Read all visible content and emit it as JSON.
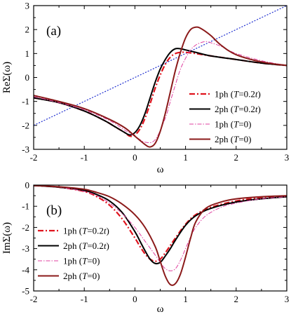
{
  "chart_data": [
    {
      "type": "line",
      "panel_label": "(a)",
      "xlabel": "ω",
      "ylabel": "ReΣ(ω)",
      "xlim": [
        -2,
        3
      ],
      "ylim": [
        -3,
        3
      ],
      "xticks": [
        "-2",
        "-1",
        "0",
        "1",
        "2",
        "3"
      ],
      "yticks": [
        "-3",
        "-2",
        "-1",
        "0",
        "1",
        "2",
        "3"
      ],
      "grid": false,
      "legend_position": "right",
      "reference_line": {
        "style": "dotted",
        "color": "#1f2fd0",
        "x": [
          -2,
          3
        ],
        "y": [
          -2,
          3
        ]
      },
      "series": [
        {
          "name": "1ph (T=0.2t)",
          "name_parts": [
            "1ph (",
            "T",
            "=0.2",
            "t",
            ")"
          ],
          "style": "dash-dot",
          "color": "#e0141e",
          "x": [
            -2,
            -1.5,
            -1,
            -0.6,
            -0.4,
            -0.2,
            -0.1,
            0,
            0.1,
            0.2,
            0.3,
            0.4,
            0.5,
            0.6,
            0.7,
            0.8,
            0.9,
            1.0,
            1.2,
            1.5,
            2,
            2.5,
            3
          ],
          "y": [
            -0.85,
            -1.05,
            -1.4,
            -1.8,
            -2.05,
            -2.3,
            -2.45,
            -2.4,
            -2.15,
            -1.7,
            -1.1,
            -0.45,
            0.1,
            0.55,
            0.85,
            1.0,
            1.05,
            1.05,
            1.0,
            0.9,
            0.75,
            0.6,
            0.5
          ]
        },
        {
          "name": "2ph (T=0.2t)",
          "name_parts": [
            "2ph (",
            "T",
            "=0.2",
            "t",
            ")"
          ],
          "style": "solid",
          "color": "#000000",
          "x": [
            -2,
            -1.5,
            -1,
            -0.6,
            -0.4,
            -0.2,
            -0.1,
            0,
            0.1,
            0.2,
            0.3,
            0.4,
            0.5,
            0.6,
            0.7,
            0.8,
            0.9,
            1.0,
            1.2,
            1.5,
            2,
            2.5,
            3
          ],
          "y": [
            -0.85,
            -1.05,
            -1.4,
            -1.8,
            -2.05,
            -2.3,
            -2.4,
            -2.3,
            -2.0,
            -1.5,
            -0.85,
            -0.2,
            0.35,
            0.75,
            1.05,
            1.2,
            1.2,
            1.15,
            1.05,
            0.9,
            0.75,
            0.6,
            0.5
          ]
        },
        {
          "name": "1ph (T=0)",
          "name_parts": [
            "1ph (",
            "T",
            "=0)"
          ],
          "style": "thin-dash-dot",
          "color": "#e040a0",
          "x": [
            -2,
            -1.5,
            -1,
            -0.5,
            -0.2,
            0,
            0.2,
            0.4,
            0.6,
            0.7,
            0.8,
            0.9,
            1.0,
            1.1,
            1.2,
            1.3,
            1.4,
            1.5,
            1.7,
            2,
            2.5,
            3
          ],
          "y": [
            -0.8,
            -1.05,
            -1.35,
            -1.8,
            -2.2,
            -2.45,
            -2.7,
            -2.6,
            -1.7,
            -1.0,
            -0.3,
            0.35,
            0.8,
            1.15,
            1.35,
            1.45,
            1.5,
            1.45,
            1.3,
            1.0,
            0.7,
            0.5
          ]
        },
        {
          "name": "2ph (T=0)",
          "name_parts": [
            "2ph (",
            "T",
            "=0)"
          ],
          "style": "solid",
          "color": "#8b1a1a",
          "x": [
            -2,
            -1.5,
            -1,
            -0.5,
            -0.2,
            0,
            0.2,
            0.3,
            0.4,
            0.5,
            0.6,
            0.7,
            0.8,
            0.9,
            1.0,
            1.1,
            1.2,
            1.3,
            1.5,
            1.7,
            2,
            2.5,
            3
          ],
          "y": [
            -0.75,
            -1.0,
            -1.3,
            -1.75,
            -2.1,
            -2.45,
            -2.8,
            -2.9,
            -2.75,
            -2.25,
            -1.5,
            -0.6,
            0.3,
            1.05,
            1.65,
            2.0,
            2.1,
            2.05,
            1.75,
            1.35,
            0.95,
            0.65,
            0.5
          ]
        }
      ]
    },
    {
      "type": "line",
      "panel_label": "(b)",
      "xlabel": "ω",
      "ylabel": "ImΣ(ω)",
      "xlim": [
        -2,
        3
      ],
      "ylim": [
        -5,
        0
      ],
      "xticks": [
        "-2",
        "-1",
        "0",
        "1",
        "2",
        "3"
      ],
      "yticks": [
        "0",
        "-1",
        "-2",
        "-3",
        "-4",
        "-5"
      ],
      "grid": false,
      "legend_position": "left",
      "series": [
        {
          "name": "1ph (T=0.2t)",
          "name_parts": [
            "1ph (",
            "T",
            "=0.2",
            "t",
            ")"
          ],
          "style": "dash-dot",
          "color": "#e0141e",
          "x": [
            -2,
            -1.5,
            -1,
            -0.75,
            -0.5,
            -0.25,
            0,
            0.1,
            0.2,
            0.3,
            0.4,
            0.5,
            0.6,
            0.7,
            0.8,
            1.0,
            1.2,
            1.5,
            2,
            2.5,
            3
          ],
          "y": [
            -0.02,
            -0.1,
            -0.3,
            -0.55,
            -0.95,
            -1.6,
            -2.5,
            -2.9,
            -3.25,
            -3.5,
            -3.6,
            -3.5,
            -3.2,
            -2.85,
            -2.5,
            -1.85,
            -1.4,
            -1.05,
            -0.75,
            -0.6,
            -0.55
          ]
        },
        {
          "name": "2ph (T=0.2t)",
          "name_parts": [
            "2ph (",
            "T",
            "=0.2",
            "t",
            ")"
          ],
          "style": "solid",
          "color": "#000000",
          "x": [
            -2,
            -1.5,
            -1,
            -0.75,
            -0.5,
            -0.25,
            0,
            0.1,
            0.2,
            0.3,
            0.4,
            0.5,
            0.6,
            0.7,
            0.8,
            1.0,
            1.2,
            1.5,
            2,
            2.5,
            3
          ],
          "y": [
            -0.02,
            -0.1,
            -0.25,
            -0.45,
            -0.75,
            -1.3,
            -2.2,
            -2.65,
            -3.1,
            -3.5,
            -3.7,
            -3.65,
            -3.35,
            -3.0,
            -2.6,
            -1.9,
            -1.45,
            -1.1,
            -0.8,
            -0.65,
            -0.55
          ]
        },
        {
          "name": "1ph (T=0)",
          "name_parts": [
            "1ph (",
            "T",
            "=0)"
          ],
          "style": "thin-dash-dot",
          "color": "#e040a0",
          "x": [
            -2,
            -1.5,
            -1,
            -0.75,
            -0.5,
            -0.25,
            0,
            0.2,
            0.4,
            0.5,
            0.6,
            0.7,
            0.8,
            0.9,
            1.0,
            1.1,
            1.2,
            1.4,
            1.7,
            2,
            2.5,
            3
          ],
          "y": [
            -0.02,
            -0.1,
            -0.3,
            -0.5,
            -0.85,
            -1.35,
            -2.0,
            -2.65,
            -3.3,
            -3.65,
            -3.95,
            -4.05,
            -3.95,
            -3.55,
            -3.0,
            -2.45,
            -2.0,
            -1.45,
            -1.05,
            -0.85,
            -0.65,
            -0.55
          ]
        },
        {
          "name": "2ph (T=0)",
          "name_parts": [
            "2ph (",
            "T",
            "=0)"
          ],
          "style": "solid",
          "color": "#8b1a1a",
          "x": [
            -2,
            -1.5,
            -1,
            -0.75,
            -0.5,
            -0.25,
            0,
            0.2,
            0.4,
            0.5,
            0.6,
            0.7,
            0.8,
            0.9,
            1.0,
            1.1,
            1.2,
            1.4,
            1.7,
            2,
            2.5,
            3
          ],
          "y": [
            -0.02,
            -0.08,
            -0.2,
            -0.35,
            -0.55,
            -0.9,
            -1.4,
            -2.0,
            -2.9,
            -3.6,
            -4.3,
            -4.7,
            -4.65,
            -4.2,
            -3.4,
            -2.5,
            -1.75,
            -1.1,
            -0.8,
            -0.65,
            -0.55,
            -0.5
          ]
        }
      ]
    }
  ]
}
